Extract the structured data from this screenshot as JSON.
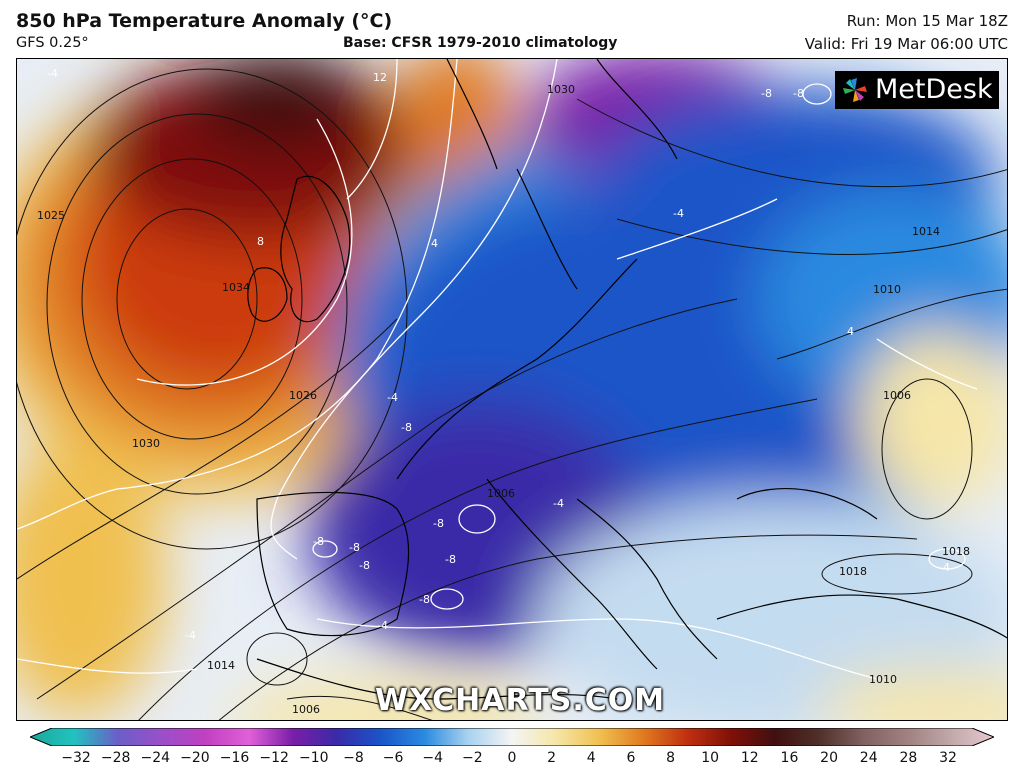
{
  "header": {
    "title": "850 hPa Temperature Anomaly (°C)",
    "model": "GFS 0.25°",
    "base": "Base: CFSR 1979-2010 climatology",
    "run": "Run: Mon 15 Mar 18Z",
    "valid": "Valid: Fri 19 Mar 06:00 UTC"
  },
  "logo": {
    "text": "MetDesk",
    "icon": "metdesk-pinwheel-icon"
  },
  "watermark": "WXCHARTS.COM",
  "colors": {
    "warm_anomaly": "#cc3a10",
    "cold_anomaly": "#1a55c8",
    "deep_cold": "#7a1ea8",
    "neutral": "#f0f2f5",
    "coastline": "#000000",
    "isobar": "#111111",
    "anomaly_contour": "#ffffff"
  },
  "colorbar": {
    "ticks": [
      "−32",
      "−28",
      "−24",
      "−20",
      "−16",
      "−12",
      "−10",
      "−8",
      "−6",
      "−4",
      "−2",
      "0",
      "2",
      "4",
      "6",
      "8",
      "10",
      "12",
      "16",
      "20",
      "24",
      "28",
      "32"
    ],
    "stops": [
      "#1aa89a",
      "#22c2c0",
      "#6a5fc8",
      "#9a4fc8",
      "#c040c0",
      "#e060d8",
      "#7a1ea8",
      "#3a2aa8",
      "#1a55c8",
      "#2a8ae0",
      "#a8d2f0",
      "#f4f4f4",
      "#f6e6a8",
      "#f0c050",
      "#e07a20",
      "#c03010",
      "#801008",
      "#401010",
      "#503028",
      "#806060",
      "#a08080",
      "#c0a8a8",
      "#e8c8d0"
    ]
  },
  "map": {
    "isobar_labels": [
      "1025",
      "1034",
      "1030",
      "1026",
      "1014",
      "1006",
      "1030",
      "1014",
      "1010",
      "1006",
      "1018",
      "1018",
      "1010",
      "1006"
    ],
    "anomaly_labels": [
      "12",
      "-4",
      "8",
      "-4",
      "-8",
      "-8",
      "4",
      "-4",
      "-8",
      "-8",
      "-8",
      "-8",
      "-8",
      "-8",
      "-8",
      "-4",
      "-4",
      "-4",
      "-4",
      "4"
    ]
  }
}
